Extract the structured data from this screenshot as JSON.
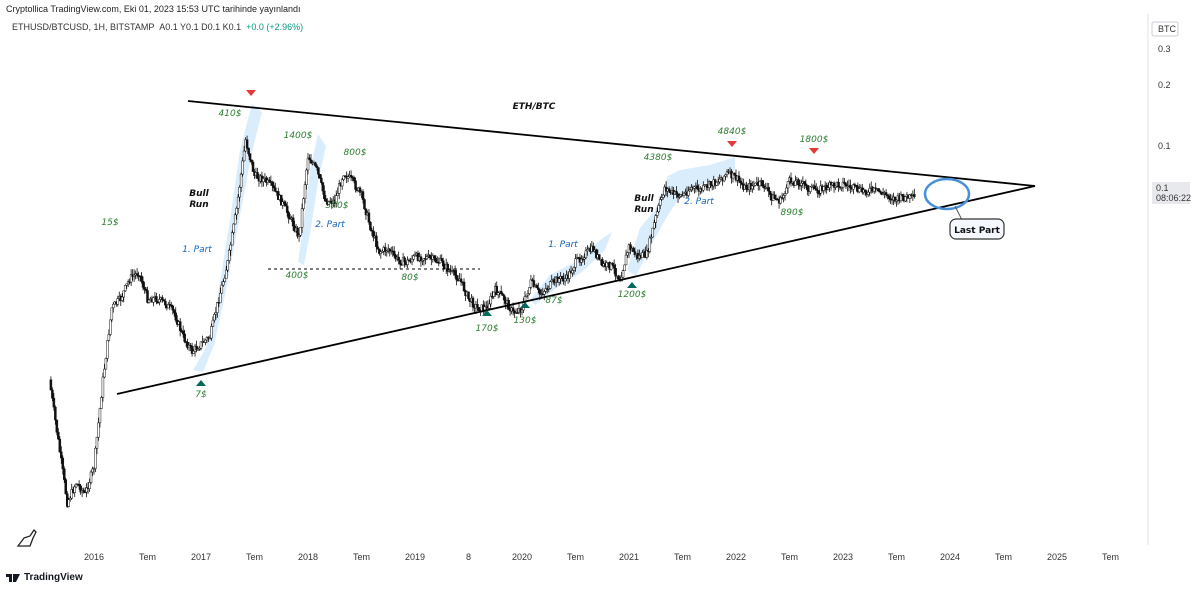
{
  "header": {
    "published": "Cryptollica TradingView.com, Eki 01, 2023 15:53 UTC tarihinde yayınlandı",
    "symbol": "ETHUSD/BTCUSD, 1H, BITSTAMP",
    "ohlc": "A0.1 Y0.1 D0.1 K0.1",
    "change": "+0.0 (+2.96%)"
  },
  "footer": {
    "brand": "TradingView"
  },
  "chart_data": {
    "type": "candlestick",
    "title": "ETH/BTC",
    "y_unit": "BTC",
    "y_scale": "log",
    "y_ticks": [
      "0.3",
      "0.2",
      "0.1",
      "0.1"
    ],
    "price_label": {
      "value": "0.1",
      "countdown": "08:06:22"
    },
    "x_ticks": [
      "2016",
      "Tem",
      "2017",
      "Tem",
      "2018",
      "Tem",
      "2019",
      "8",
      "2020",
      "Tem",
      "2021",
      "Tem",
      "2022",
      "Tem",
      "2023",
      "Tem",
      "2024",
      "Tem",
      "2025",
      "Tem"
    ],
    "series": [
      {
        "x": [
          "2015-08",
          "2015-09",
          "2015-10",
          "2015-11",
          "2015-12",
          "2016-01",
          "2016-02",
          "2016-03",
          "2016-04",
          "2016-05",
          "2016-06",
          "2016-07",
          "2016-08",
          "2016-09",
          "2016-10",
          "2016-11",
          "2016-12",
          "2017-01",
          "2017-02",
          "2017-03",
          "2017-04",
          "2017-05",
          "2017-06",
          "2017-07",
          "2017-08",
          "2017-09",
          "2017-10",
          "2017-11",
          "2017-12",
          "2018-01",
          "2018-02",
          "2018-03",
          "2018-04",
          "2018-05",
          "2018-06",
          "2018-07",
          "2018-08",
          "2018-09",
          "2018-10",
          "2018-11",
          "2018-12",
          "2019-01",
          "2019-02",
          "2019-03",
          "2019-04",
          "2019-05",
          "2019-06",
          "2019-07",
          "2019-08",
          "2019-09",
          "2019-10",
          "2019-11",
          "2019-12",
          "2020-01",
          "2020-02",
          "2020-03",
          "2020-04",
          "2020-05",
          "2020-06",
          "2020-07",
          "2020-08",
          "2020-09",
          "2020-10",
          "2020-11",
          "2020-12",
          "2021-01",
          "2021-02",
          "2021-03",
          "2021-04",
          "2021-05",
          "2021-06",
          "2021-07",
          "2021-08",
          "2021-09",
          "2021-10",
          "2021-11",
          "2021-12",
          "2022-01",
          "2022-02",
          "2022-03",
          "2022-04",
          "2022-05",
          "2022-06",
          "2022-07",
          "2022-08",
          "2022-09",
          "2022-10",
          "2022-11",
          "2022-12",
          "2023-01",
          "2023-02",
          "2023-03",
          "2023-04",
          "2023-05",
          "2023-06",
          "2023-07",
          "2023-08",
          "2023-09"
        ],
        "values": [
          0.008,
          0.004,
          0.002,
          0.0025,
          0.0022,
          0.003,
          0.008,
          0.018,
          0.02,
          0.025,
          0.027,
          0.02,
          0.02,
          0.019,
          0.017,
          0.013,
          0.011,
          0.012,
          0.013,
          0.02,
          0.03,
          0.055,
          0.12,
          0.08,
          0.077,
          0.07,
          0.06,
          0.05,
          0.04,
          0.1,
          0.085,
          0.06,
          0.06,
          0.083,
          0.075,
          0.064,
          0.045,
          0.034,
          0.035,
          0.031,
          0.03,
          0.032,
          0.032,
          0.031,
          0.03,
          0.027,
          0.025,
          0.02,
          0.018,
          0.018,
          0.022,
          0.02,
          0.017,
          0.018,
          0.024,
          0.021,
          0.023,
          0.025,
          0.025,
          0.03,
          0.033,
          0.035,
          0.029,
          0.029,
          0.025,
          0.036,
          0.032,
          0.033,
          0.05,
          0.07,
          0.065,
          0.064,
          0.07,
          0.068,
          0.072,
          0.076,
          0.082,
          0.078,
          0.07,
          0.072,
          0.073,
          0.063,
          0.06,
          0.075,
          0.075,
          0.07,
          0.068,
          0.07,
          0.072,
          0.073,
          0.07,
          0.067,
          0.068,
          0.067,
          0.064,
          0.061,
          0.063,
          0.062
        ]
      }
    ],
    "pattern": "symmetrical triangle",
    "annotations": {
      "title": "ETH/BTC",
      "prices": [
        "15$",
        "7$",
        "410$",
        "1400$",
        "800$",
        "400$",
        "370$",
        "80$",
        "170$",
        "130$",
        "87$",
        "1200$",
        "4380$",
        "4840$",
        "1800$",
        "890$"
      ],
      "phases": [
        "1. Part",
        "2. Part",
        "1. Part",
        "2. Part"
      ],
      "bull_run": [
        "Bull",
        "Run"
      ],
      "callout": "Last Part"
    }
  }
}
